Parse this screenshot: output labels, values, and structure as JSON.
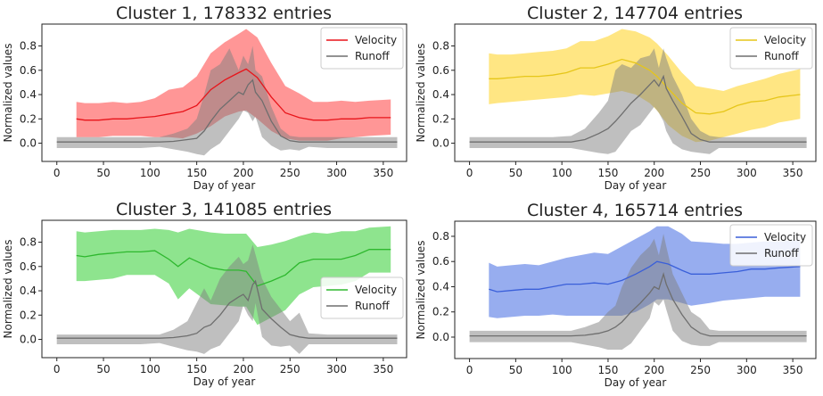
{
  "chart_data": {
    "type": "line",
    "xlabel": "Day of year",
    "ylabel": "Normalized values",
    "xlim": [
      -16,
      375
    ],
    "xticks": [
      0,
      50,
      100,
      150,
      200,
      250,
      300,
      350
    ],
    "yticks": [
      0.0,
      0.2,
      0.4,
      0.6,
      0.8
    ],
    "legend_labels": [
      "Velocity",
      "Runoff"
    ],
    "runoff_color": "#7f7f7f",
    "runoff_days": [
      0,
      30,
      60,
      90,
      110,
      125,
      140,
      150,
      158,
      165,
      175,
      185,
      195,
      200,
      205,
      210,
      213,
      220,
      230,
      240,
      250,
      260,
      270,
      290,
      320,
      365
    ],
    "panels": [
      {
        "title": "Cluster 1, 178332 entries",
        "ylim": [
          -0.15,
          0.98
        ],
        "legend_position": "upper-right",
        "velocity_color": "#e8141a",
        "velocity_fill": "#ff4040",
        "velocity": {
          "days": [
            21,
            30,
            45,
            60,
            75,
            90,
            105,
            120,
            135,
            150,
            165,
            180,
            195,
            203,
            215,
            230,
            245,
            260,
            275,
            290,
            305,
            320,
            335,
            358
          ],
          "mean": [
            0.2,
            0.19,
            0.19,
            0.2,
            0.2,
            0.21,
            0.22,
            0.24,
            0.26,
            0.31,
            0.44,
            0.52,
            0.58,
            0.61,
            0.54,
            0.38,
            0.25,
            0.21,
            0.19,
            0.19,
            0.2,
            0.2,
            0.21,
            0.21
          ],
          "upper": [
            0.34,
            0.33,
            0.33,
            0.34,
            0.33,
            0.34,
            0.37,
            0.44,
            0.46,
            0.55,
            0.74,
            0.83,
            0.9,
            0.94,
            0.87,
            0.66,
            0.47,
            0.41,
            0.34,
            0.34,
            0.35,
            0.34,
            0.35,
            0.36
          ],
          "lower": [
            0.05,
            0.05,
            0.05,
            0.06,
            0.06,
            0.06,
            0.05,
            0.05,
            0.04,
            0.08,
            0.14,
            0.22,
            0.26,
            0.27,
            0.2,
            0.1,
            0.04,
            0.02,
            0.02,
            0.02,
            0.04,
            0.05,
            0.06,
            0.07
          ]
        },
        "runoff": {
          "mean": [
            0.01,
            0.01,
            0.01,
            0.01,
            0.01,
            0.015,
            0.03,
            0.04,
            0.1,
            0.18,
            0.28,
            0.35,
            0.42,
            0.4,
            0.48,
            0.52,
            0.42,
            0.35,
            0.18,
            0.06,
            0.02,
            0.01,
            0.01,
            0.01,
            0.01,
            0.01
          ],
          "upper": [
            0.05,
            0.05,
            0.05,
            0.05,
            0.05,
            0.08,
            0.12,
            0.2,
            0.4,
            0.6,
            0.65,
            0.78,
            0.6,
            0.72,
            0.65,
            0.8,
            0.6,
            0.55,
            0.3,
            0.12,
            0.06,
            0.05,
            0.05,
            0.05,
            0.05,
            0.05
          ],
          "lower": [
            -0.04,
            -0.04,
            -0.04,
            -0.04,
            -0.03,
            -0.05,
            -0.07,
            -0.09,
            -0.1,
            -0.05,
            0,
            0.1,
            0.2,
            0.27,
            0.25,
            0.18,
            0.22,
            0.05,
            -0.02,
            -0.06,
            -0.05,
            -0.06,
            -0.03,
            -0.04,
            -0.04,
            -0.04
          ]
        }
      },
      {
        "title": "Cluster 2, 147704 entries",
        "ylim": [
          -0.15,
          0.98
        ],
        "legend_position": "upper-right",
        "velocity_color": "#e6c619",
        "velocity_fill": "#ffd21e",
        "velocity": {
          "days": [
            21,
            30,
            45,
            60,
            75,
            90,
            105,
            120,
            135,
            150,
            165,
            180,
            195,
            203,
            215,
            230,
            245,
            260,
            275,
            290,
            305,
            320,
            335,
            358
          ],
          "mean": [
            0.53,
            0.53,
            0.54,
            0.55,
            0.55,
            0.56,
            0.58,
            0.62,
            0.62,
            0.65,
            0.69,
            0.66,
            0.6,
            0.55,
            0.45,
            0.33,
            0.25,
            0.24,
            0.26,
            0.31,
            0.34,
            0.35,
            0.38,
            0.4
          ],
          "upper": [
            0.74,
            0.73,
            0.73,
            0.74,
            0.75,
            0.76,
            0.78,
            0.84,
            0.84,
            0.88,
            0.94,
            0.92,
            0.87,
            0.82,
            0.72,
            0.58,
            0.47,
            0.45,
            0.43,
            0.47,
            0.5,
            0.53,
            0.57,
            0.61
          ],
          "lower": [
            0.32,
            0.33,
            0.34,
            0.35,
            0.36,
            0.37,
            0.38,
            0.4,
            0.39,
            0.41,
            0.43,
            0.4,
            0.33,
            0.27,
            0.15,
            0.06,
            0.01,
            0.02,
            0.05,
            0.08,
            0.11,
            0.13,
            0.17,
            0.2
          ]
        },
        "runoff": {
          "mean": [
            0.01,
            0.01,
            0.01,
            0.01,
            0.01,
            0.03,
            0.08,
            0.12,
            0.18,
            0.24,
            0.33,
            0.4,
            0.48,
            0.52,
            0.47,
            0.55,
            0.45,
            0.35,
            0.22,
            0.08,
            0.03,
            0.01,
            0.01,
            0.01,
            0.01,
            0.01
          ],
          "upper": [
            0.05,
            0.05,
            0.05,
            0.05,
            0.06,
            0.12,
            0.25,
            0.35,
            0.6,
            0.65,
            0.62,
            0.7,
            0.72,
            0.78,
            0.62,
            0.78,
            0.7,
            0.55,
            0.4,
            0.2,
            0.1,
            0.06,
            0.05,
            0.05,
            0.05,
            0.05
          ],
          "lower": [
            -0.04,
            -0.04,
            -0.04,
            -0.04,
            -0.04,
            -0.06,
            -0.08,
            -0.09,
            -0.07,
            0,
            0.1,
            0.15,
            0.25,
            0.3,
            0.25,
            0.18,
            0.1,
            0,
            -0.05,
            -0.07,
            -0.08,
            -0.09,
            -0.04,
            -0.04,
            -0.04,
            -0.04
          ]
        }
      },
      {
        "title": "Cluster 3, 141085 entries",
        "ylim": [
          -0.15,
          0.98
        ],
        "legend_position": "center-right",
        "velocity_color": "#2eb82e",
        "velocity_fill": "#32cd32",
        "velocity": {
          "days": [
            21,
            30,
            45,
            60,
            75,
            90,
            105,
            120,
            130,
            142,
            165,
            180,
            195,
            203,
            215,
            230,
            245,
            260,
            275,
            290,
            305,
            320,
            335,
            358
          ],
          "mean": [
            0.69,
            0.68,
            0.7,
            0.71,
            0.72,
            0.72,
            0.73,
            0.66,
            0.6,
            0.67,
            0.59,
            0.57,
            0.57,
            0.56,
            0.44,
            0.48,
            0.53,
            0.63,
            0.66,
            0.66,
            0.66,
            0.69,
            0.74,
            0.74
          ],
          "upper": [
            0.89,
            0.88,
            0.89,
            0.9,
            0.9,
            0.9,
            0.91,
            0.9,
            0.88,
            0.91,
            0.88,
            0.87,
            0.87,
            0.87,
            0.76,
            0.78,
            0.81,
            0.85,
            0.88,
            0.87,
            0.89,
            0.89,
            0.92,
            0.93
          ],
          "lower": [
            0.48,
            0.48,
            0.49,
            0.5,
            0.53,
            0.53,
            0.53,
            0.46,
            0.33,
            0.42,
            0.29,
            0.28,
            0.27,
            0.27,
            0.12,
            0.18,
            0.24,
            0.37,
            0.43,
            0.44,
            0.45,
            0.48,
            0.55,
            0.55
          ]
        },
        "runoff": {
          "mean": [
            0.01,
            0.01,
            0.01,
            0.01,
            0.01,
            0.015,
            0.03,
            0.05,
            0.1,
            0.12,
            0.2,
            0.3,
            0.35,
            0.37,
            0.32,
            0.45,
            0.48,
            0.25,
            0.17,
            0.1,
            0.04,
            0.02,
            0.01,
            0.01,
            0.01,
            0.01
          ],
          "upper": [
            0.04,
            0.04,
            0.04,
            0.04,
            0.04,
            0.08,
            0.15,
            0.3,
            0.42,
            0.32,
            0.5,
            0.6,
            0.68,
            0.62,
            0.65,
            0.78,
            0.7,
            0.5,
            0.35,
            0.25,
            0.15,
            0.22,
            0.05,
            0.04,
            0.04,
            0.04
          ],
          "lower": [
            -0.04,
            -0.04,
            -0.04,
            -0.04,
            -0.03,
            -0.06,
            -0.09,
            -0.1,
            -0.12,
            -0.08,
            -0.05,
            0.05,
            0.15,
            0.28,
            0.2,
            0.15,
            0.3,
            0.02,
            -0.05,
            -0.06,
            -0.05,
            -0.12,
            -0.04,
            -0.04,
            -0.04,
            -0.04
          ]
        }
      },
      {
        "title": "Cluster 4, 165714 entries",
        "ylim": [
          -0.17,
          0.92
        ],
        "legend_position": "upper-right",
        "velocity_color": "#3a5fd9",
        "velocity_fill": "#4169e1",
        "velocity": {
          "days": [
            21,
            30,
            45,
            60,
            75,
            90,
            105,
            120,
            135,
            150,
            165,
            180,
            195,
            203,
            215,
            230,
            240,
            260,
            275,
            290,
            305,
            320,
            335,
            358
          ],
          "mean": [
            0.38,
            0.36,
            0.37,
            0.38,
            0.38,
            0.4,
            0.42,
            0.42,
            0.43,
            0.42,
            0.45,
            0.5,
            0.56,
            0.6,
            0.58,
            0.53,
            0.5,
            0.5,
            0.51,
            0.52,
            0.54,
            0.54,
            0.55,
            0.56
          ],
          "upper": [
            0.59,
            0.56,
            0.57,
            0.58,
            0.57,
            0.6,
            0.63,
            0.65,
            0.67,
            0.66,
            0.72,
            0.78,
            0.84,
            0.88,
            0.88,
            0.82,
            0.76,
            0.75,
            0.74,
            0.74,
            0.75,
            0.76,
            0.76,
            0.77
          ],
          "lower": [
            0.16,
            0.15,
            0.16,
            0.17,
            0.17,
            0.18,
            0.17,
            0.17,
            0.17,
            0.17,
            0.17,
            0.2,
            0.26,
            0.3,
            0.3,
            0.27,
            0.25,
            0.27,
            0.29,
            0.3,
            0.31,
            0.32,
            0.32,
            0.32
          ]
        },
        "runoff": {
          "mean": [
            0.01,
            0.01,
            0.01,
            0.01,
            0.01,
            0.015,
            0.03,
            0.05,
            0.08,
            0.12,
            0.2,
            0.27,
            0.35,
            0.4,
            0.38,
            0.5,
            0.42,
            0.3,
            0.18,
            0.08,
            0.03,
            0.01,
            0.01,
            0.01,
            0.01,
            0.01
          ],
          "upper": [
            0.05,
            0.05,
            0.05,
            0.05,
            0.05,
            0.08,
            0.12,
            0.2,
            0.25,
            0.4,
            0.55,
            0.65,
            0.72,
            0.78,
            0.65,
            0.82,
            0.72,
            0.5,
            0.35,
            0.2,
            0.15,
            0.06,
            0.05,
            0.05,
            0.05,
            0.05
          ],
          "lower": [
            -0.04,
            -0.04,
            -0.04,
            -0.04,
            -0.04,
            -0.06,
            -0.08,
            -0.1,
            -0.1,
            -0.1,
            -0.05,
            0.05,
            0.15,
            0.28,
            0.25,
            0.3,
            0.22,
            0.05,
            -0.03,
            -0.06,
            -0.07,
            -0.07,
            -0.04,
            -0.04,
            -0.04,
            -0.04
          ]
        }
      }
    ]
  }
}
